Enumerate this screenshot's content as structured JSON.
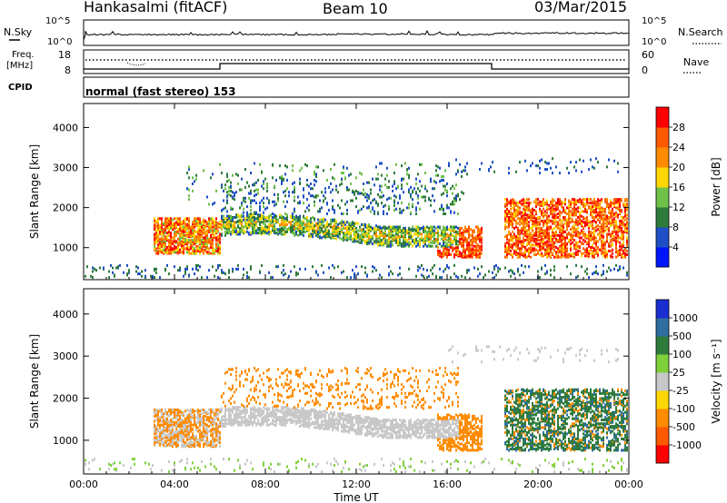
{
  "header": {
    "station": "Hankasalmi (fitACF)",
    "beam": "Beam 10",
    "date": "03/Mar/2015"
  },
  "noise_panel": {
    "left_label": "N.Sky",
    "right_label": "N.Search",
    "left_ticks": [
      "10^5",
      "10^0"
    ],
    "right_ticks": [
      "10^5",
      "10^0"
    ]
  },
  "freq_panel": {
    "left_label_line1": "Freq.",
    "left_label_line2": "[MHz]",
    "right_label": "Nave",
    "left_ticks": [
      "18",
      "8"
    ],
    "right_ticks": [
      "60",
      "0"
    ]
  },
  "cpid": {
    "label": "CPID",
    "value": "normal (fast stereo) 153"
  },
  "chart_data": [
    {
      "type": "heatmap",
      "name": "power",
      "ylabel": "Slant Range [km]",
      "ylim": [
        200,
        4600
      ],
      "yticks": [
        "1000",
        "2000",
        "3000",
        "4000"
      ],
      "x_range_hours": [
        0,
        24
      ],
      "colorbar": {
        "label": "Power [dB]",
        "ticks": [
          "4",
          "8",
          "12",
          "16",
          "20",
          "24",
          "28"
        ],
        "range": [
          0,
          32
        ],
        "colors": [
          "#0016ff",
          "#1f4fc4",
          "#2e7b3c",
          "#6fc14a",
          "#ffd700",
          "#ff8c00",
          "#ff5a00",
          "#ff0000"
        ]
      }
    },
    {
      "type": "heatmap",
      "name": "velocity",
      "ylabel": "Slant Range [km]",
      "ylim": [
        200,
        4600
      ],
      "yticks": [
        "1000",
        "2000",
        "3000",
        "4000"
      ],
      "x_range_hours": [
        0,
        24
      ],
      "colorbar": {
        "label": "Velocity [m s⁻¹]",
        "ticks": [
          "1000",
          "500",
          "100",
          "25",
          "-25",
          "-100",
          "-500",
          "-1000"
        ],
        "colors": [
          "#1a2fd0",
          "#2e6ea0",
          "#2e7b3c",
          "#7fd13b",
          "#c8c8c8",
          "#ffd700",
          "#ff8c00",
          "#ff5a00",
          "#ff0000"
        ]
      }
    }
  ],
  "time_axis": {
    "label": "Time UT",
    "ticks": [
      "00:00",
      "04:00",
      "08:00",
      "12:00",
      "16:00",
      "20:00",
      "00:00"
    ]
  }
}
